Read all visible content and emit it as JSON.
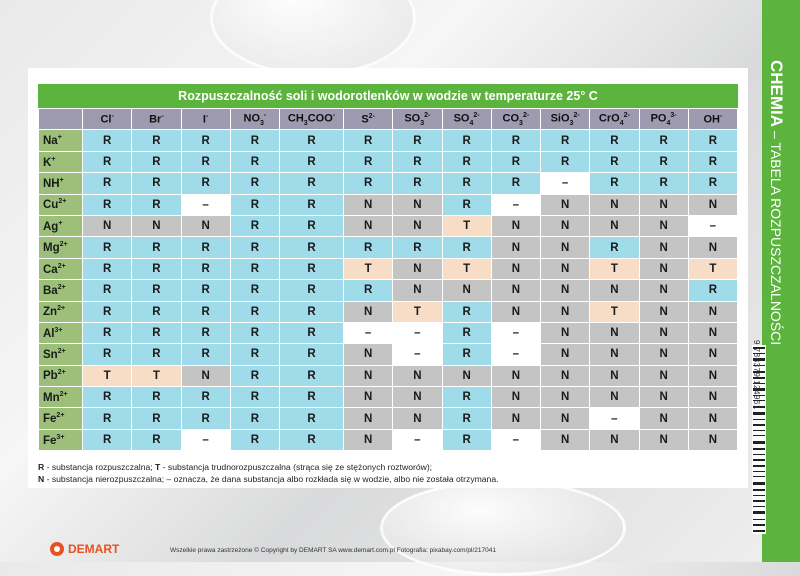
{
  "card": {
    "title": "Rozpuszczalność soli i wodorotlenków w wodzie w temperaturze 25° C"
  },
  "table": {
    "anions": [
      {
        "base": "Cl",
        "sup": "-",
        "sub": ""
      },
      {
        "base": "Br",
        "sup": "-",
        "sub": ""
      },
      {
        "base": "I",
        "sup": "-",
        "sub": ""
      },
      {
        "base": "NO",
        "sub": "3",
        "sup": "-"
      },
      {
        "base": "CH",
        "sub": "3",
        "rest": "COO",
        "sup": "-"
      },
      {
        "base": "S",
        "sup": "2-",
        "sub": ""
      },
      {
        "base": "SO",
        "sub": "3",
        "sup": "2-"
      },
      {
        "base": "SO",
        "sub": "4",
        "sup": "2-"
      },
      {
        "base": "CO",
        "sub": "3",
        "sup": "2-"
      },
      {
        "base": "SiO",
        "sub": "3",
        "sup": "2-"
      },
      {
        "base": "CrO",
        "sub": "4",
        "sup": "2-"
      },
      {
        "base": "PO",
        "sub": "4",
        "sup": "3-"
      },
      {
        "base": "OH",
        "sup": "-",
        "sub": ""
      }
    ],
    "cations": [
      {
        "base": "Na",
        "sup": "+"
      },
      {
        "base": "K",
        "sup": "+"
      },
      {
        "base": "NH",
        "sup": "+"
      },
      {
        "base": "Cu",
        "sup": "2+"
      },
      {
        "base": "Ag",
        "sup": "+"
      },
      {
        "base": "Mg",
        "sup": "2+"
      },
      {
        "base": "Ca",
        "sup": "2+"
      },
      {
        "base": "Ba",
        "sup": "2+"
      },
      {
        "base": "Zn",
        "sup": "2+"
      },
      {
        "base": "Al",
        "sup": "3+"
      },
      {
        "base": "Sn",
        "sup": "2+"
      },
      {
        "base": "Pb",
        "sup": "2+"
      },
      {
        "base": "Mn",
        "sup": "2+"
      },
      {
        "base": "Fe",
        "sup": "2+"
      },
      {
        "base": "Fe",
        "sup": "3+"
      }
    ],
    "rows": [
      [
        "R",
        "R",
        "R",
        "R",
        "R",
        "R",
        "R",
        "R",
        "R",
        "R",
        "R",
        "R",
        "R"
      ],
      [
        "R",
        "R",
        "R",
        "R",
        "R",
        "R",
        "R",
        "R",
        "R",
        "R",
        "R",
        "R",
        "R"
      ],
      [
        "R",
        "R",
        "R",
        "R",
        "R",
        "R",
        "R",
        "R",
        "R",
        "–",
        "R",
        "R",
        "R"
      ],
      [
        "R",
        "R",
        "–",
        "R",
        "R",
        "N",
        "N",
        "R",
        "–",
        "N",
        "N",
        "N",
        "N"
      ],
      [
        "N",
        "N",
        "N",
        "R",
        "R",
        "N",
        "N",
        "T",
        "N",
        "N",
        "N",
        "N",
        "–"
      ],
      [
        "R",
        "R",
        "R",
        "R",
        "R",
        "R",
        "R",
        "R",
        "N",
        "N",
        "R",
        "N",
        "N"
      ],
      [
        "R",
        "R",
        "R",
        "R",
        "R",
        "T",
        "N",
        "T",
        "N",
        "N",
        "T",
        "N",
        "T"
      ],
      [
        "R",
        "R",
        "R",
        "R",
        "R",
        "R",
        "N",
        "N",
        "N",
        "N",
        "N",
        "N",
        "R"
      ],
      [
        "R",
        "R",
        "R",
        "R",
        "R",
        "N",
        "T",
        "R",
        "N",
        "N",
        "T",
        "N",
        "N"
      ],
      [
        "R",
        "R",
        "R",
        "R",
        "R",
        "–",
        "–",
        "R",
        "–",
        "N",
        "N",
        "N",
        "N"
      ],
      [
        "R",
        "R",
        "R",
        "R",
        "R",
        "N",
        "–",
        "R",
        "–",
        "N",
        "N",
        "N",
        "N"
      ],
      [
        "T",
        "T",
        "N",
        "R",
        "R",
        "N",
        "N",
        "N",
        "N",
        "N",
        "N",
        "N",
        "N"
      ],
      [
        "R",
        "R",
        "R",
        "R",
        "R",
        "N",
        "N",
        "R",
        "N",
        "N",
        "N",
        "N",
        "N"
      ],
      [
        "R",
        "R",
        "R",
        "R",
        "R",
        "N",
        "N",
        "R",
        "N",
        "N",
        "–",
        "N",
        "N"
      ],
      [
        "R",
        "R",
        "–",
        "R",
        "R",
        "N",
        "–",
        "R",
        "–",
        "N",
        "N",
        "N",
        "N"
      ]
    ]
  },
  "legend": {
    "r_key": "R",
    "r_text": " - substancja rozpuszczalna; ",
    "t_key": "T",
    "t_text": " - substancja trudnorozpuszczalna (strąca się ze stężonych roztworów);",
    "n_key": "N",
    "n_text": " - substancja nierozpuszczalna; – oznacza, że dana substancja albo rozkłada się w wodzie, albo nie została otrzymana."
  },
  "side": {
    "main": "CHEMIA",
    "sub": " – TABELA ROZPUSZCZALNOŚCI"
  },
  "barcode": "9 788379 124961",
  "footer": {
    "logo": "DEMART",
    "copyright": "Wszelkie prawa zastrzeżone © Copyright by DEMART SA www.demart.com.pl Fotografia: pixabay.com/pl/217041"
  },
  "colors": {
    "soluble": "#9fdbe8",
    "insoluble": "#c4c4c4",
    "poorly_soluble": "#f7dcc6",
    "none": "#ffffff",
    "header_green": "#5cb33d",
    "anion_header": "#9e9ab0",
    "cation_header": "#9cc07a"
  }
}
